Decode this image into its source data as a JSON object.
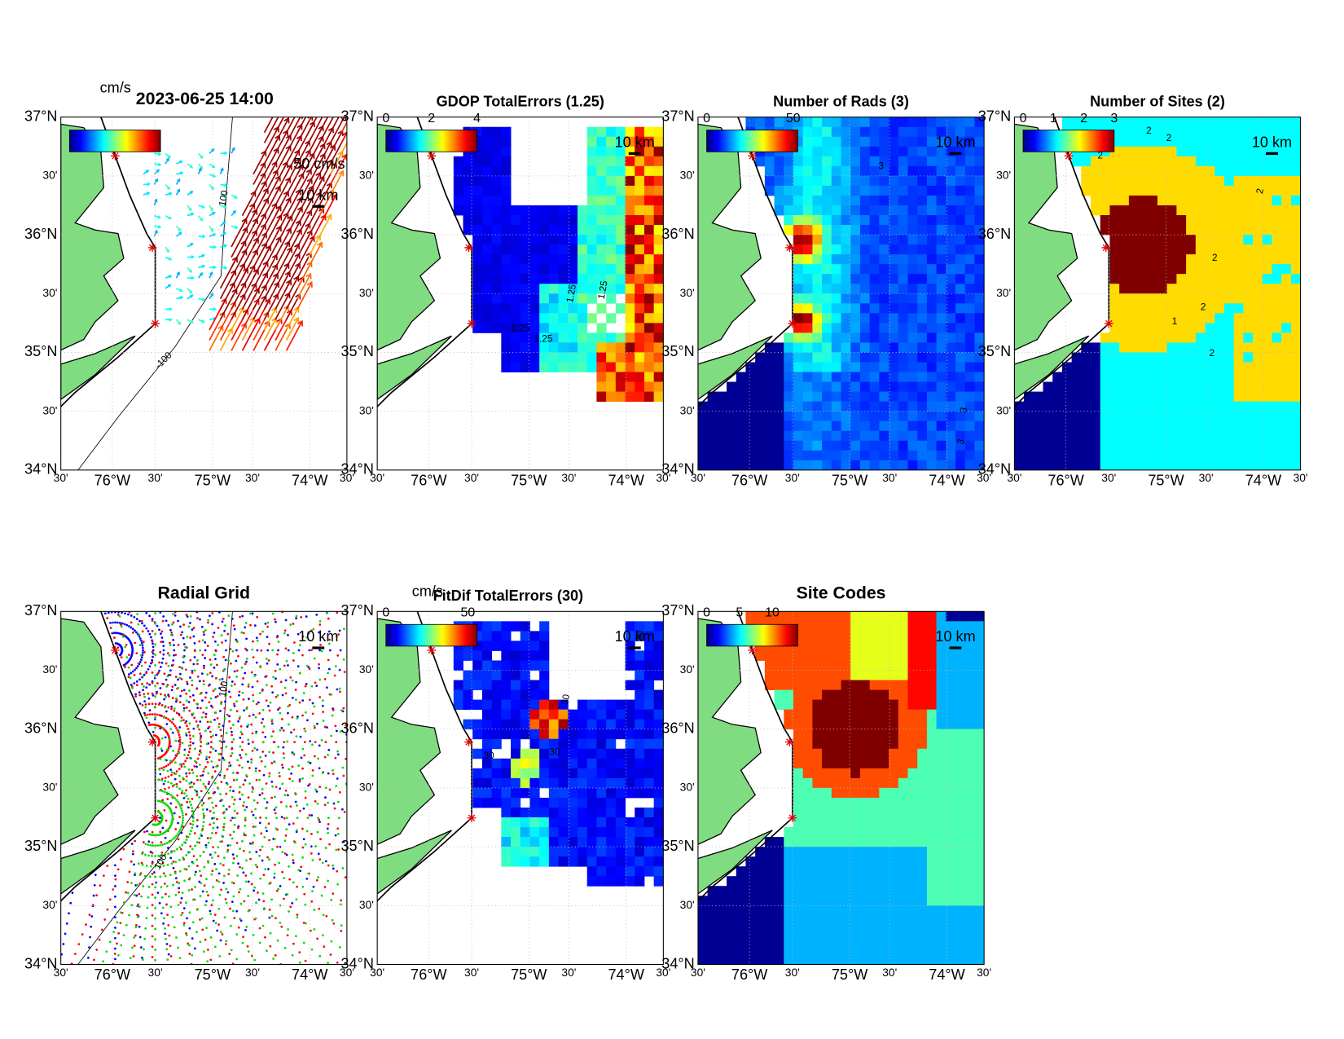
{
  "lat_labels": [
    "37°N",
    "30'",
    "36°N",
    "30'",
    "35°N",
    "30'",
    "34°N"
  ],
  "lon_labels": [
    "30'",
    "76°W",
    "30'",
    "75°W",
    "30'",
    "74°W",
    "30'"
  ],
  "panels": [
    {
      "title": "2023-06-25 14:00",
      "colorbar_unit": "cm/s",
      "speed_scale": "50 cm/s",
      "distance_scale": "10 km",
      "contour_labels": [
        "100",
        "-100"
      ]
    },
    {
      "title": "GDOP TotalErrors (1.25)",
      "colorbar_ticks": [
        0,
        2,
        4
      ],
      "distance_scale": "10 km",
      "contour_labels": [
        "1.25",
        "1.25",
        "1.25",
        "1.25"
      ]
    },
    {
      "title": "Number of Rads (3)",
      "colorbar_ticks": [
        0,
        50
      ],
      "distance_scale": "10 km",
      "contour_labels": [
        "3",
        "3",
        "3"
      ]
    },
    {
      "title": "Number of Sites (2)",
      "colorbar_ticks": [
        0,
        1,
        2,
        3
      ],
      "distance_scale": "10 km",
      "contour_labels": [
        "2",
        "2",
        "2",
        "2",
        "2",
        "2",
        "1",
        "2"
      ]
    },
    {
      "title": "Radial Grid",
      "distance_scale": "10 km",
      "contour_labels": [
        "100",
        "100"
      ]
    },
    {
      "title": "FitDif TotalErrors (30)",
      "colorbar_unit": "cm/s",
      "colorbar_ticks": [
        0,
        50
      ],
      "distance_scale": "10 km",
      "contour_labels": [
        "30",
        "30",
        "30",
        "30"
      ]
    },
    {
      "title": "Site Codes",
      "colorbar_ticks": [
        0,
        5,
        10
      ],
      "distance_scale": "10 km"
    }
  ]
}
